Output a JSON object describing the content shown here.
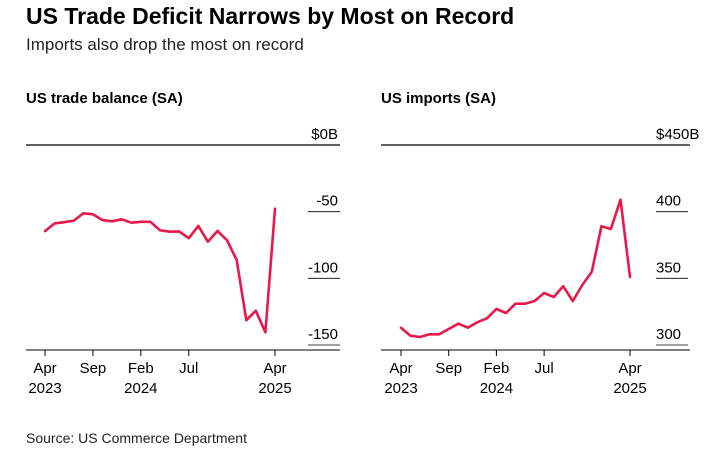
{
  "header": {
    "title": "US Trade Deficit Narrows by Most on Record",
    "subtitle": "Imports also drop the most on record"
  },
  "footer": {
    "source": "Source: US Commerce Department"
  },
  "colors": {
    "line": "#e8194a",
    "axis": "#000000",
    "grid": "#000000"
  },
  "chart_data": [
    {
      "type": "line",
      "title": "US trade balance (SA)",
      "ylim": [
        -150,
        0
      ],
      "y_ticks": [
        {
          "value": 0,
          "label": "$0B"
        },
        {
          "value": -50,
          "label": "-50"
        },
        {
          "value": -100,
          "label": "-100"
        },
        {
          "value": -150,
          "label": "-150"
        }
      ],
      "x_ticks": [
        {
          "index": 0,
          "label": "Apr",
          "year": "2023"
        },
        {
          "index": 5,
          "label": "Sep",
          "year": ""
        },
        {
          "index": 10,
          "label": "Feb",
          "year": "2024"
        },
        {
          "index": 15,
          "label": "Jul",
          "year": ""
        },
        {
          "index": 24,
          "label": "Apr",
          "year": "2025"
        }
      ],
      "series": [
        {
          "name": "US trade balance",
          "x": [
            "2023-04",
            "2023-05",
            "2023-06",
            "2023-07",
            "2023-08",
            "2023-09",
            "2023-10",
            "2023-11",
            "2023-12",
            "2024-01",
            "2024-02",
            "2024-03",
            "2024-04",
            "2024-05",
            "2024-06",
            "2024-07",
            "2024-08",
            "2024-09",
            "2024-10",
            "2024-11",
            "2024-12",
            "2025-01",
            "2025-02",
            "2025-03",
            "2025-04"
          ],
          "values": [
            -64.6,
            -58.8,
            -57.9,
            -56.7,
            -51.2,
            -52.0,
            -56.3,
            -57.2,
            -55.7,
            -58.3,
            -57.6,
            -57.6,
            -64.0,
            -65.0,
            -64.8,
            -69.9,
            -60.7,
            -72.5,
            -64.4,
            -71.5,
            -86.3,
            -131.4,
            -124.3,
            -140.5,
            -47.8
          ]
        }
      ]
    },
    {
      "type": "line",
      "title": "US imports (SA)",
      "ylim": [
        300,
        450
      ],
      "y_ticks": [
        {
          "value": 450,
          "label": "$450B"
        },
        {
          "value": 400,
          "label": "400"
        },
        {
          "value": 350,
          "label": "350"
        },
        {
          "value": 300,
          "label": "300"
        }
      ],
      "x_ticks": [
        {
          "index": 0,
          "label": "Apr",
          "year": "2023"
        },
        {
          "index": 5,
          "label": "Sep",
          "year": ""
        },
        {
          "index": 10,
          "label": "Feb",
          "year": "2024"
        },
        {
          "index": 15,
          "label": "Jul",
          "year": ""
        },
        {
          "index": 24,
          "label": "Apr",
          "year": "2025"
        }
      ],
      "series": [
        {
          "name": "US imports",
          "x": [
            "2023-04",
            "2023-05",
            "2023-06",
            "2023-07",
            "2023-08",
            "2023-09",
            "2023-10",
            "2023-11",
            "2023-12",
            "2024-01",
            "2024-02",
            "2024-03",
            "2024-04",
            "2024-05",
            "2024-06",
            "2024-07",
            "2024-08",
            "2024-09",
            "2024-10",
            "2024-11",
            "2024-12",
            "2025-01",
            "2025-02",
            "2025-03",
            "2025-04"
          ],
          "values": [
            313.0,
            307.0,
            306.0,
            308.0,
            308.0,
            312.0,
            316.0,
            313.0,
            317.0,
            320.0,
            327.0,
            324.0,
            331.0,
            331.0,
            333.0,
            339.0,
            336.0,
            344.0,
            333.0,
            345.0,
            355.0,
            389.0,
            387.0,
            409.0,
            351.0
          ]
        }
      ]
    }
  ]
}
